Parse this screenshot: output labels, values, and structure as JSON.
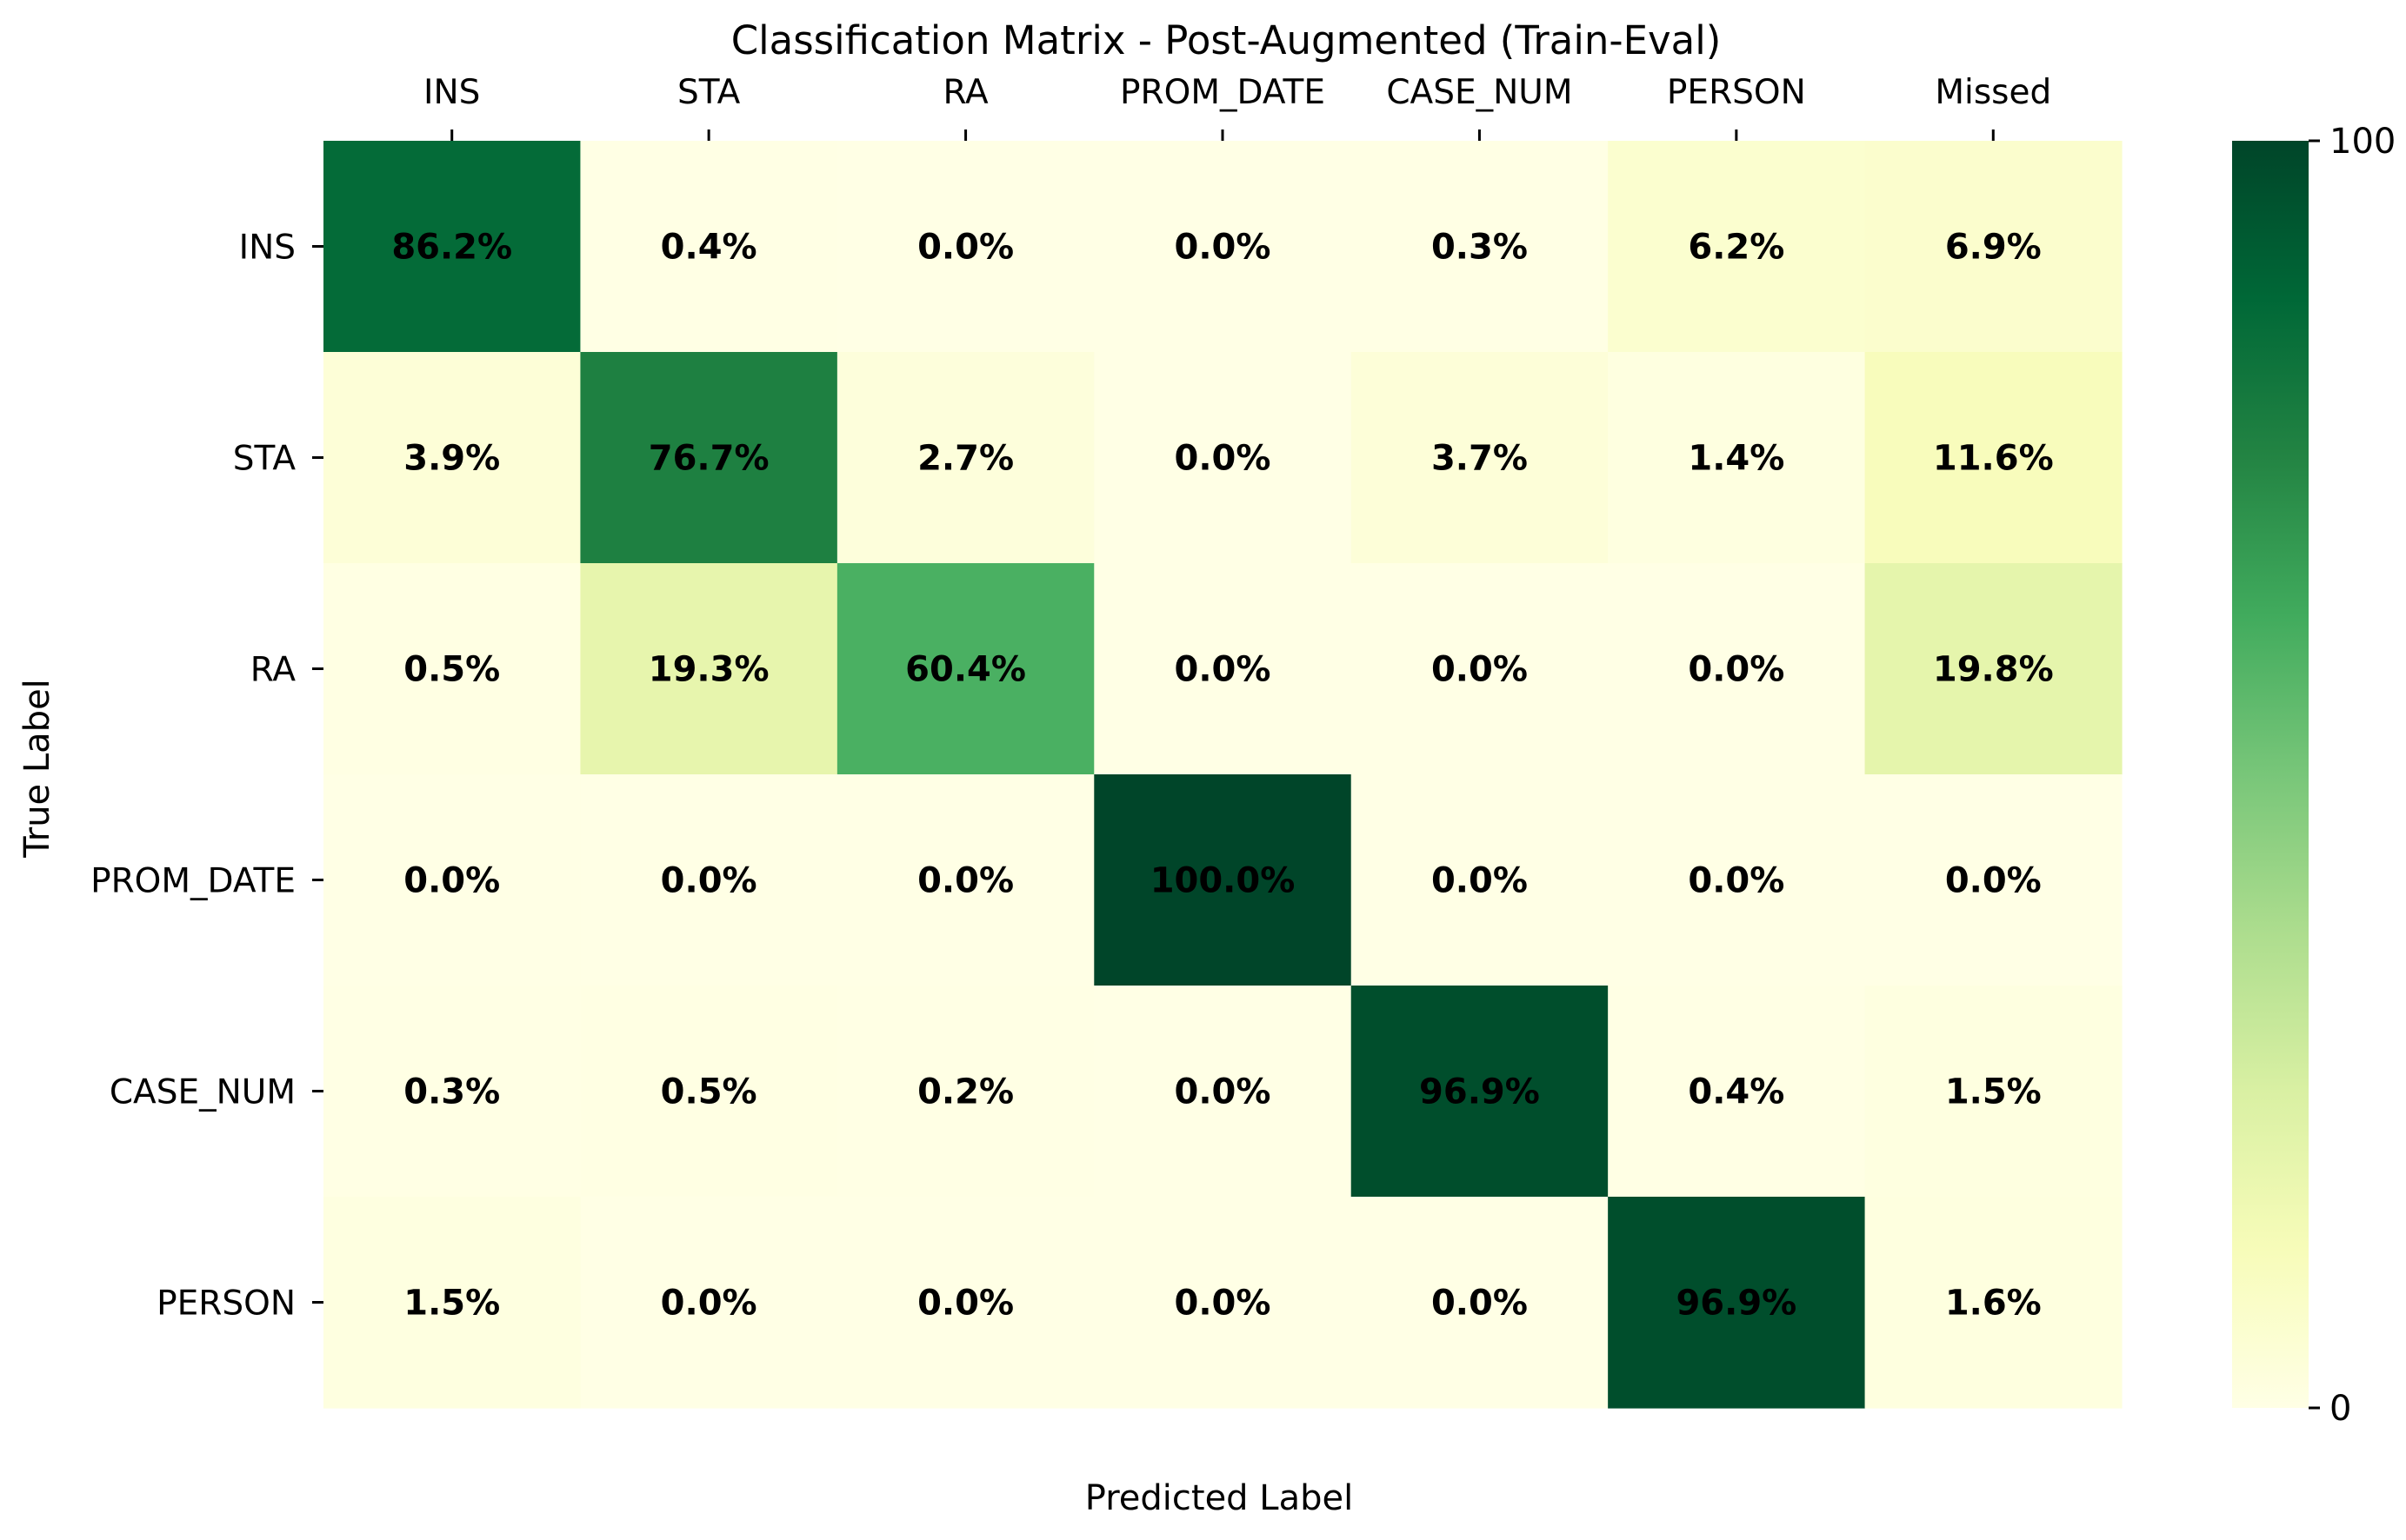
{
  "chart_data": {
    "type": "heatmap",
    "title": "Classification Matrix - Post-Augmented (Train-Eval)",
    "xlabel": "Predicted Label",
    "ylabel": "True Label",
    "x_categories": [
      "INS",
      "STA",
      "RA",
      "PROM_DATE",
      "CASE_NUM",
      "PERSON",
      "Missed"
    ],
    "y_categories": [
      "INS",
      "STA",
      "RA",
      "PROM_DATE",
      "CASE_NUM",
      "PERSON"
    ],
    "values": [
      [
        86.2,
        0.4,
        0.0,
        0.0,
        0.3,
        6.2,
        6.9
      ],
      [
        3.9,
        76.7,
        2.7,
        0.0,
        3.7,
        1.4,
        11.6
      ],
      [
        0.5,
        19.3,
        60.4,
        0.0,
        0.0,
        0.0,
        19.8
      ],
      [
        0.0,
        0.0,
        0.0,
        100.0,
        0.0,
        0.0,
        0.0
      ],
      [
        0.3,
        0.5,
        0.2,
        0.0,
        96.9,
        0.4,
        1.5
      ],
      [
        1.5,
        0.0,
        0.0,
        0.0,
        0.0,
        96.9,
        1.6
      ]
    ],
    "value_suffix": "%",
    "value_decimals": 1,
    "colormap": "Greens/YlGn",
    "color_scale": [
      [
        0,
        "#ffffe5"
      ],
      [
        0.125,
        "#f7fcb9"
      ],
      [
        0.25,
        "#d9f0a3"
      ],
      [
        0.375,
        "#addd8e"
      ],
      [
        0.5,
        "#78c679"
      ],
      [
        0.625,
        "#41ab5d"
      ],
      [
        0.75,
        "#238443"
      ],
      [
        0.875,
        "#006837"
      ],
      [
        1,
        "#004529"
      ]
    ],
    "vmin": 0,
    "vmax": 100,
    "colorbar_ticks": [
      {
        "value": 100,
        "label": "100"
      },
      {
        "value": 0,
        "label": "0"
      }
    ],
    "x_tick_position": "top",
    "colorbar_position": "right",
    "grid": false
  }
}
